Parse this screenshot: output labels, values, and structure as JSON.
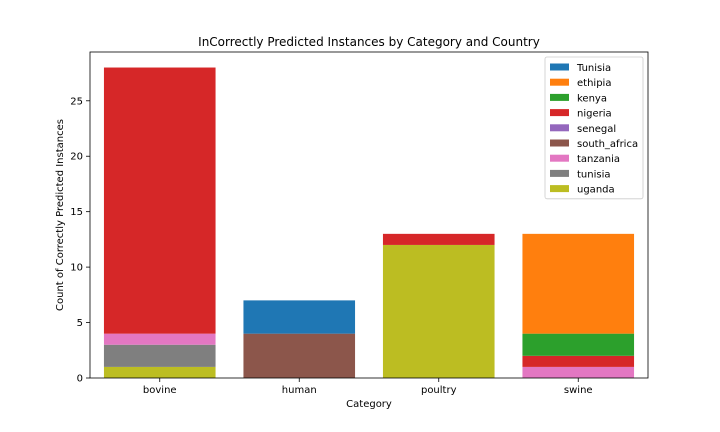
{
  "chart_data": {
    "type": "bar",
    "stacked": true,
    "title": "InCorrectly Predicted Instances by Category and Country",
    "xlabel": "Category",
    "ylabel": "Count of Correctly Predicted Instances",
    "categories": [
      "bovine",
      "human",
      "poultry",
      "swine"
    ],
    "ylim": [
      0,
      29.4
    ],
    "yticks": [
      "0",
      "5",
      "10",
      "15",
      "20",
      "25"
    ],
    "legend_position": "top-right",
    "grid": false,
    "series": [
      {
        "name": "Tunisia",
        "color": "#1f77b4",
        "values": [
          0,
          3,
          0,
          0
        ]
      },
      {
        "name": "ethipia",
        "color": "#ff7f0e",
        "values": [
          0,
          0,
          0,
          9
        ]
      },
      {
        "name": "kenya",
        "color": "#2ca02c",
        "values": [
          0,
          0,
          0,
          2
        ]
      },
      {
        "name": "nigeria",
        "color": "#d62728",
        "values": [
          24,
          0,
          1,
          1
        ]
      },
      {
        "name": "senegal",
        "color": "#9467bd",
        "values": [
          0,
          0,
          0,
          0
        ]
      },
      {
        "name": "south_africa",
        "color": "#8c564b",
        "values": [
          0,
          4,
          0,
          0
        ]
      },
      {
        "name": "tanzania",
        "color": "#e377c2",
        "values": [
          1,
          0,
          0,
          1
        ]
      },
      {
        "name": "tunisia",
        "color": "#7f7f7f",
        "values": [
          2,
          0,
          0,
          0
        ]
      },
      {
        "name": "uganda",
        "color": "#bcbd22",
        "values": [
          1,
          0,
          12,
          0
        ]
      }
    ],
    "stack_order": [
      "uganda",
      "tunisia",
      "tanzania",
      "south_africa",
      "senegal",
      "nigeria",
      "kenya",
      "ethipia",
      "Tunisia"
    ]
  }
}
